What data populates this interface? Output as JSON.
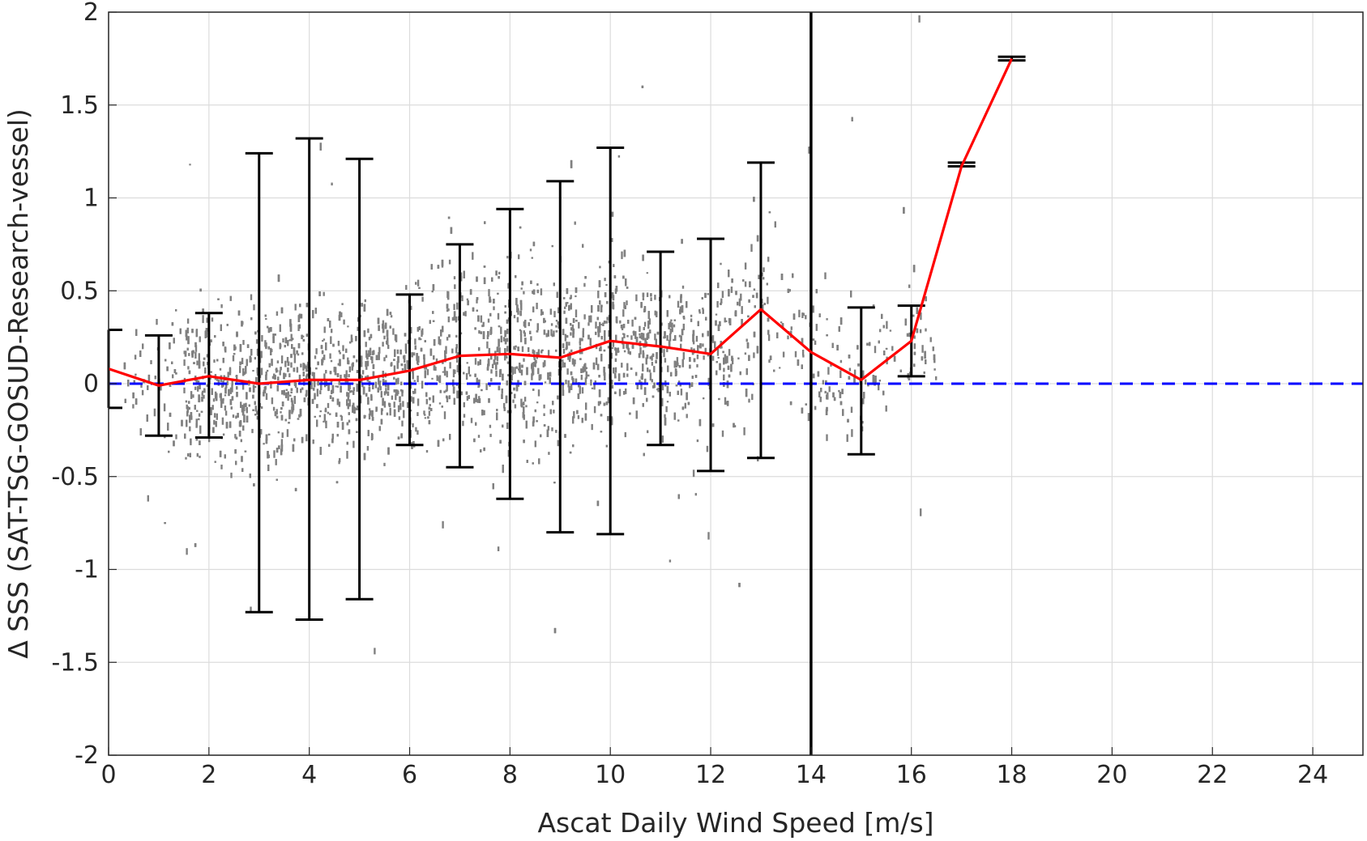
{
  "chart_data": {
    "type": "scatter",
    "title": "",
    "xlabel": "Ascat Daily Wind Speed [m/s]",
    "ylabel": "Δ SSS (SAT-TSG-GOSUD-Research-vessel)",
    "xlim": [
      0,
      25
    ],
    "ylim": [
      -2,
      2
    ],
    "xticks": [
      0,
      2,
      4,
      6,
      8,
      10,
      12,
      14,
      16,
      18,
      20,
      22,
      24
    ],
    "yticks": [
      -2,
      -1.5,
      -1,
      -0.5,
      0,
      0.5,
      1,
      1.5,
      2
    ],
    "grid": true,
    "colors": {
      "scatter": "#808080",
      "mean_line": "#ff0000",
      "zero_line": "#0000ff",
      "error_bars": "#000000",
      "vertical_line": "#000000"
    },
    "mean_line": {
      "x": [
        0,
        1,
        2,
        3,
        4,
        5,
        6,
        7,
        8,
        9,
        10,
        11,
        12,
        13,
        14,
        15,
        16,
        17,
        18
      ],
      "y": [
        0.08,
        -0.01,
        0.04,
        0.0,
        0.02,
        0.02,
        0.07,
        0.15,
        0.16,
        0.14,
        0.23,
        0.2,
        0.16,
        0.4,
        0.17,
        0.02,
        0.23,
        1.17,
        1.75
      ]
    },
    "error_bars": {
      "x": [
        0,
        1,
        2,
        3,
        4,
        5,
        6,
        7,
        8,
        9,
        10,
        11,
        12,
        13,
        15,
        16,
        17,
        18
      ],
      "lower": [
        -0.13,
        -0.28,
        -0.29,
        -1.23,
        -1.27,
        -1.16,
        -0.33,
        -0.45,
        -0.62,
        -0.8,
        -0.81,
        -0.33,
        -0.47,
        -0.4,
        -0.38,
        0.04,
        1.17,
        1.74
      ],
      "upper": [
        0.29,
        0.26,
        0.38,
        1.24,
        1.32,
        1.21,
        0.48,
        0.75,
        0.94,
        1.09,
        1.27,
        0.71,
        0.78,
        1.19,
        0.41,
        0.42,
        1.19,
        1.76
      ]
    },
    "zero_line_y": 0,
    "vertical_line_x": 14
  }
}
